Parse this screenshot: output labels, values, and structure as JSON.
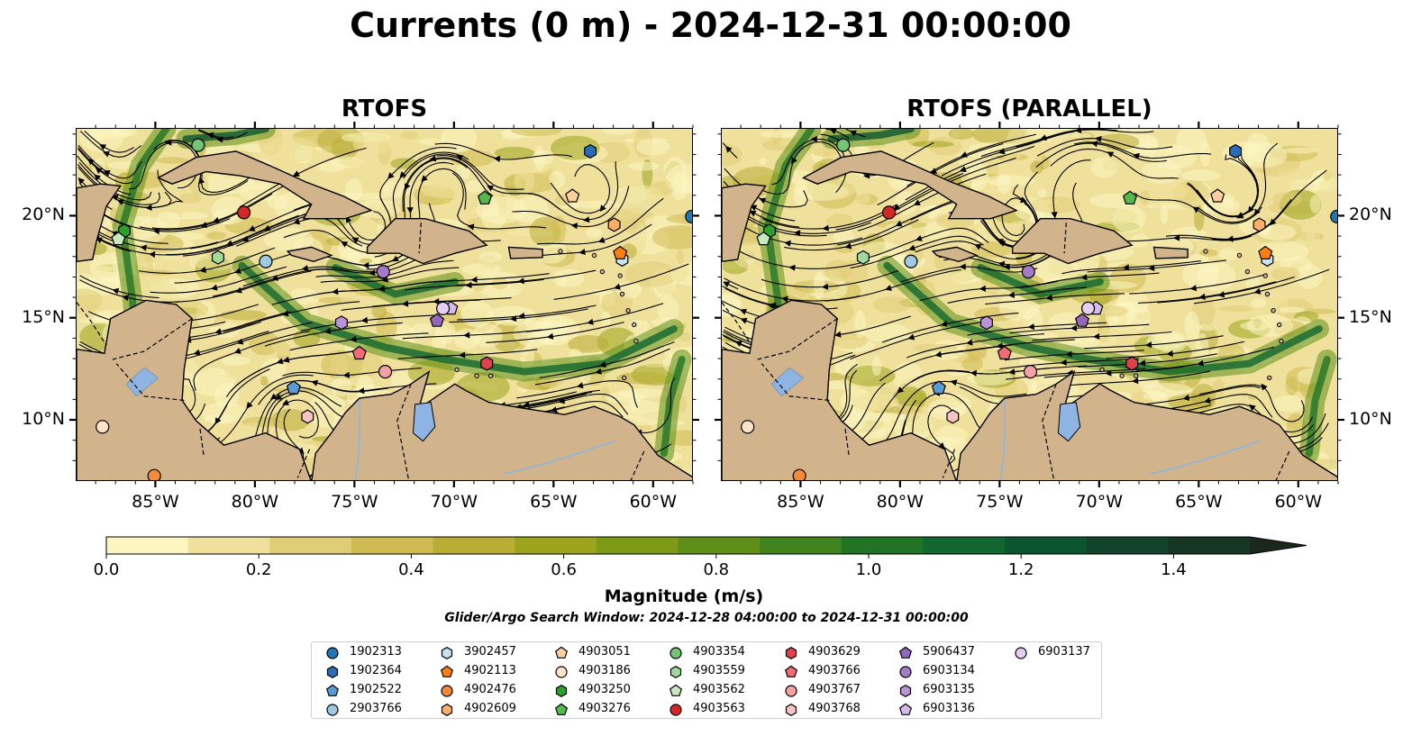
{
  "suptitle": "Currents (0 m) - 2024-12-31 00:00:00",
  "chart_data": {
    "type": "heatmap",
    "panels": [
      {
        "title": "RTOFS"
      },
      {
        "title": "RTOFS (PARALLEL)"
      }
    ],
    "xlim": [
      -89,
      -58
    ],
    "ylim": [
      7,
      24.3
    ],
    "x_ticks": [
      -85,
      -80,
      -75,
      -70,
      -65,
      -60
    ],
    "x_tick_labels": [
      "85°W",
      "80°W",
      "75°W",
      "70°W",
      "65°W",
      "60°W"
    ],
    "y_ticks": [
      10,
      15,
      20
    ],
    "y_tick_labels": [
      "10°N",
      "15°N",
      "20°N"
    ],
    "colorbar": {
      "label": "Magnitude (m/s)",
      "range": [
        0,
        1.5
      ],
      "extend": "max",
      "ticks": [
        0,
        0.2,
        0.4,
        0.6,
        0.8,
        1.0,
        1.2,
        1.4
      ],
      "tick_labels": [
        "0.0",
        "0.2",
        "0.4",
        "0.6",
        "0.8",
        "1.0",
        "1.2",
        "1.4"
      ],
      "colors": [
        "#fbf5c1",
        "#efe19b",
        "#e0cd78",
        "#cfbb52",
        "#b9ad36",
        "#9ca41d",
        "#7e9a17",
        "#5f8f19",
        "#3f831e",
        "#227425",
        "#126630",
        "#0c5531",
        "#11442b",
        "#163524",
        "#1a281c"
      ]
    },
    "land_color": "#d2b48c",
    "lake_color": "#8eb4e3",
    "window_note": "Glider/Argo Search Window: 2024-12-28 04:00:00 to 2024-12-31 00:00:00",
    "platforms": [
      {
        "id": "1902313",
        "marker": "circle",
        "color": "#1f77b4",
        "lon": -58.1,
        "lat": 20.0
      },
      {
        "id": "1902364",
        "marker": "hexagon",
        "color": "#2a6db5",
        "lon": -63.2,
        "lat": 23.2
      },
      {
        "id": "1902522",
        "marker": "pentagon",
        "color": "#5b9bd5",
        "lon": -78.1,
        "lat": 11.6
      },
      {
        "id": "2903766",
        "marker": "circle",
        "color": "#9ecae1",
        "lon": -79.5,
        "lat": 17.8
      },
      {
        "id": "3902457",
        "marker": "hexagon",
        "color": "#c6e4f2",
        "lon": -61.6,
        "lat": 17.9
      },
      {
        "id": "4902113",
        "marker": "pentagon",
        "color": "#ff7f0e",
        "lon": -61.7,
        "lat": 18.2
      },
      {
        "id": "4902476",
        "marker": "circle",
        "color": "#f58a3a",
        "lon": -85.1,
        "lat": 7.3
      },
      {
        "id": "4902609",
        "marker": "hexagon",
        "color": "#fdae6b",
        "lon": -62.0,
        "lat": 19.6
      },
      {
        "id": "4903051",
        "marker": "pentagon",
        "color": "#fdcf9e",
        "lon": -64.1,
        "lat": 21.0
      },
      {
        "id": "4903186",
        "marker": "circle",
        "color": "#fde3c8",
        "lon": -87.7,
        "lat": 9.7
      },
      {
        "id": "4903250",
        "marker": "hexagon",
        "color": "#2ca02c",
        "lon": -86.6,
        "lat": 19.3
      },
      {
        "id": "4903276",
        "marker": "pentagon",
        "color": "#54b84a",
        "lon": -68.5,
        "lat": 20.9
      },
      {
        "id": "4903354",
        "marker": "circle",
        "color": "#74c476",
        "lon": -82.9,
        "lat": 23.5
      },
      {
        "id": "4903559",
        "marker": "hexagon",
        "color": "#a1d99b",
        "lon": -81.9,
        "lat": 18.0
      },
      {
        "id": "4903562",
        "marker": "pentagon",
        "color": "#c7e9c0",
        "lon": -86.9,
        "lat": 18.9
      },
      {
        "id": "4903563",
        "marker": "circle",
        "color": "#d62728",
        "lon": -80.6,
        "lat": 20.2
      },
      {
        "id": "4903629",
        "marker": "hexagon",
        "color": "#e0424b",
        "lon": -68.4,
        "lat": 12.8
      },
      {
        "id": "4903766",
        "marker": "pentagon",
        "color": "#f06b73",
        "lon": -74.8,
        "lat": 13.3
      },
      {
        "id": "4903767",
        "marker": "circle",
        "color": "#f4a0a5",
        "lon": -73.5,
        "lat": 12.4
      },
      {
        "id": "4903768",
        "marker": "hexagon",
        "color": "#f7c4c4",
        "lon": -77.4,
        "lat": 10.2
      },
      {
        "id": "5906437",
        "marker": "pentagon",
        "color": "#9467bd",
        "lon": -70.9,
        "lat": 14.9
      },
      {
        "id": "6903134",
        "marker": "circle",
        "color": "#a37bc9",
        "lon": -73.6,
        "lat": 17.3
      },
      {
        "id": "6903135",
        "marker": "hexagon",
        "color": "#b993d6",
        "lon": -75.7,
        "lat": 14.8
      },
      {
        "id": "6903136",
        "marker": "pentagon",
        "color": "#d4b9ea",
        "lon": -70.2,
        "lat": 15.5
      },
      {
        "id": "6903137",
        "marker": "circle",
        "color": "#e5d0f4",
        "lon": -70.6,
        "lat": 15.5
      }
    ]
  }
}
